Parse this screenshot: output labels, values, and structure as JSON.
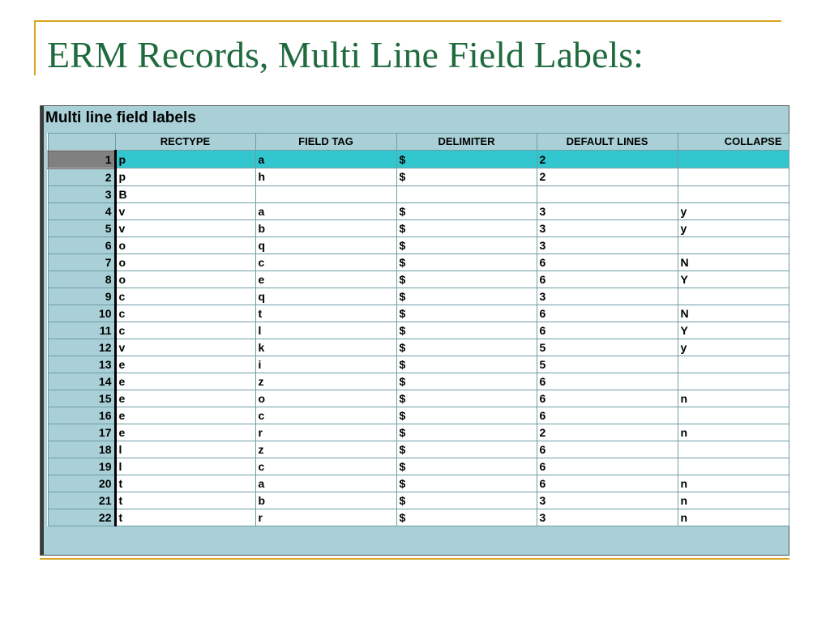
{
  "slide": {
    "title": "ERM Records, Multi Line Field Labels:"
  },
  "panel": {
    "caption": "Multi line field labels",
    "columns": [
      "RECTYPE",
      "FIELD TAG",
      "DELIMITER",
      "DEFAULT LINES",
      "COLLAPSE"
    ],
    "rows": [
      {
        "num": "1",
        "rectype": "p",
        "tag": "a",
        "delim": "$",
        "lines": "2",
        "collapse": ""
      },
      {
        "num": "2",
        "rectype": "p",
        "tag": "h",
        "delim": "$",
        "lines": "2",
        "collapse": ""
      },
      {
        "num": "3",
        "rectype": "B",
        "tag": "",
        "delim": "",
        "lines": "",
        "collapse": ""
      },
      {
        "num": "4",
        "rectype": "v",
        "tag": "a",
        "delim": "$",
        "lines": "3",
        "collapse": "y"
      },
      {
        "num": "5",
        "rectype": "v",
        "tag": "b",
        "delim": "$",
        "lines": "3",
        "collapse": "y"
      },
      {
        "num": "6",
        "rectype": "o",
        "tag": "q",
        "delim": "$",
        "lines": "3",
        "collapse": ""
      },
      {
        "num": "7",
        "rectype": "o",
        "tag": "c",
        "delim": "$",
        "lines": "6",
        "collapse": "N"
      },
      {
        "num": "8",
        "rectype": "o",
        "tag": "e",
        "delim": "$",
        "lines": "6",
        "collapse": "Y"
      },
      {
        "num": "9",
        "rectype": "c",
        "tag": "q",
        "delim": "$",
        "lines": "3",
        "collapse": ""
      },
      {
        "num": "10",
        "rectype": "c",
        "tag": "t",
        "delim": "$",
        "lines": "6",
        "collapse": "N"
      },
      {
        "num": "11",
        "rectype": "c",
        "tag": "l",
        "delim": "$",
        "lines": "6",
        "collapse": "Y"
      },
      {
        "num": "12",
        "rectype": "v",
        "tag": "k",
        "delim": "$",
        "lines": "5",
        "collapse": "y"
      },
      {
        "num": "13",
        "rectype": "e",
        "tag": "i",
        "delim": "$",
        "lines": "5",
        "collapse": ""
      },
      {
        "num": "14",
        "rectype": "e",
        "tag": "z",
        "delim": "$",
        "lines": "6",
        "collapse": ""
      },
      {
        "num": "15",
        "rectype": "e",
        "tag": "o",
        "delim": "$",
        "lines": "6",
        "collapse": "n"
      },
      {
        "num": "16",
        "rectype": "e",
        "tag": "c",
        "delim": "$",
        "lines": "6",
        "collapse": ""
      },
      {
        "num": "17",
        "rectype": "e",
        "tag": "r",
        "delim": "$",
        "lines": "2",
        "collapse": "n"
      },
      {
        "num": "18",
        "rectype": "l",
        "tag": "z",
        "delim": "$",
        "lines": "6",
        "collapse": ""
      },
      {
        "num": "19",
        "rectype": "l",
        "tag": "c",
        "delim": "$",
        "lines": "6",
        "collapse": ""
      },
      {
        "num": "20",
        "rectype": "t",
        "tag": "a",
        "delim": "$",
        "lines": "6",
        "collapse": "n"
      },
      {
        "num": "21",
        "rectype": "t",
        "tag": "b",
        "delim": "$",
        "lines": "3",
        "collapse": "n"
      },
      {
        "num": "22",
        "rectype": "t",
        "tag": "r",
        "delim": "$",
        "lines": "3",
        "collapse": "n"
      }
    ],
    "selected_row": "1",
    "colors": {
      "header_bg": "#a8d0d6",
      "selected_bg": "#32c7cf",
      "title": "#1f6b3e",
      "accent_rule": "#d9a520"
    }
  }
}
